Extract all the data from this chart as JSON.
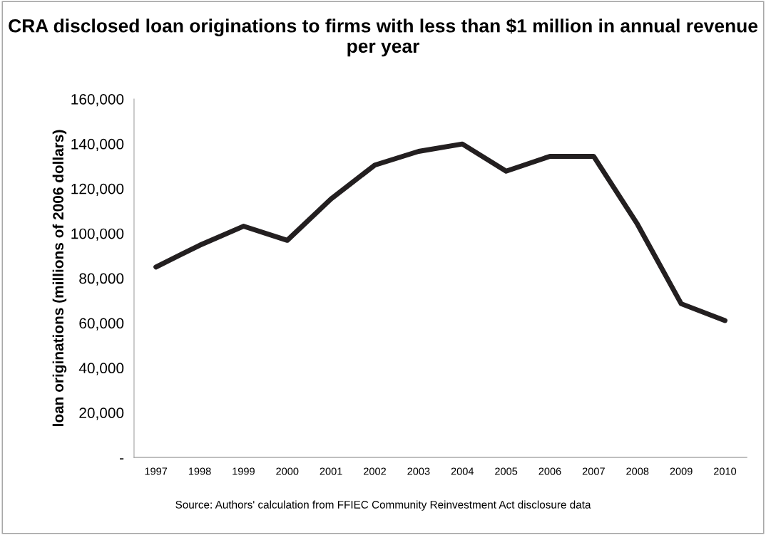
{
  "chart_data": {
    "type": "line",
    "title": "CRA disclosed loan originations to firms with less than $1 million in annual revenue per year",
    "ylabel": "loan originations (millions of 2006 dollars)",
    "categories": [
      "1997",
      "1998",
      "1999",
      "2000",
      "2001",
      "2002",
      "2003",
      "2004",
      "2005",
      "2006",
      "2007",
      "2008",
      "2009",
      "2010"
    ],
    "series": [
      {
        "color": "#231f20",
        "values": [
          85000,
          94700,
          103200,
          96900,
          115400,
          130500,
          136600,
          139900,
          127800,
          134400,
          134400,
          104100,
          68600,
          61100
        ]
      }
    ],
    "ylim": [
      0,
      160000
    ],
    "yticks": [
      {
        "value": 0,
        "label": "-"
      },
      {
        "value": 20000,
        "label": "20,000"
      },
      {
        "value": 40000,
        "label": "40,000"
      },
      {
        "value": 60000,
        "label": "60,000"
      },
      {
        "value": 80000,
        "label": "80,000"
      },
      {
        "value": 100000,
        "label": "100,000"
      },
      {
        "value": 120000,
        "label": "120,000"
      },
      {
        "value": 140000,
        "label": "140,000"
      },
      {
        "value": 160000,
        "label": "160,000"
      }
    ],
    "grid": false,
    "legend": false,
    "marker": "none",
    "line_style": "solid",
    "annotations": [
      "Source: Authors' calculation from FFIEC Community Reinvestment Act disclosure data"
    ]
  }
}
